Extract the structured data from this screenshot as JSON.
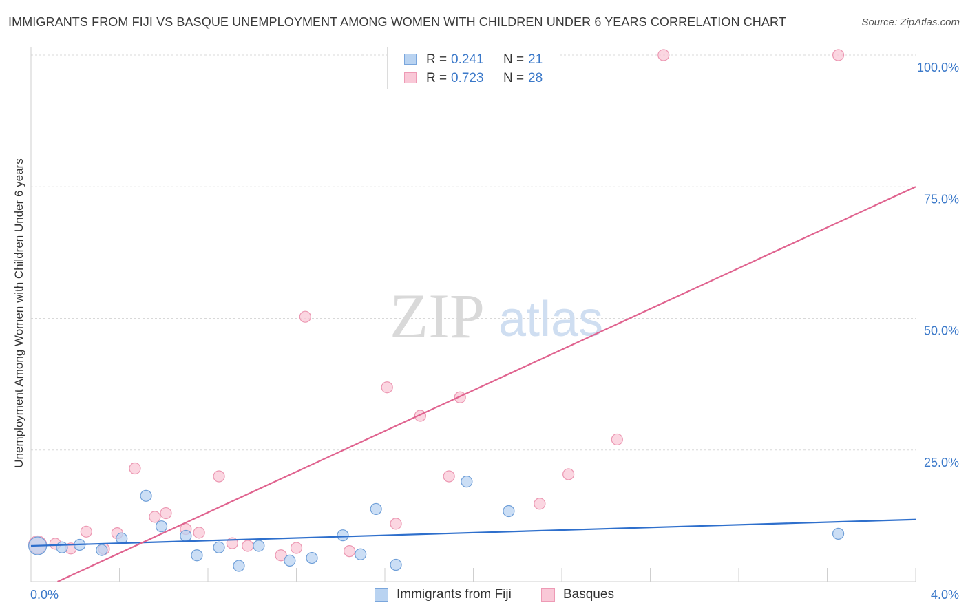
{
  "title": "IMMIGRANTS FROM FIJI VS BASQUE UNEMPLOYMENT AMONG WOMEN WITH CHILDREN UNDER 6 YEARS CORRELATION CHART",
  "source": "Source: ZipAtlas.com",
  "watermark": {
    "zip": "ZIP",
    "atlas": "atlas"
  },
  "stats": [
    {
      "r_label": "R =",
      "r_value": "0.241",
      "n_label": "N =",
      "n_value": "21",
      "fill": "#b9d3f1",
      "stroke": "#7aa6dc"
    },
    {
      "r_label": "R =",
      "r_value": "0.723",
      "n_label": "N =",
      "n_value": "28",
      "fill": "#f9c8d7",
      "stroke": "#ee9ab5"
    }
  ],
  "legend": [
    {
      "label": "Immigrants from Fiji",
      "fill": "#b9d3f1",
      "stroke": "#7aa6dc"
    },
    {
      "label": "Basques",
      "fill": "#f9c8d7",
      "stroke": "#ee9ab5"
    }
  ],
  "colors": {
    "fiji_point_fill": "#b9d3f1",
    "fiji_point_stroke": "#6f9fd8",
    "fiji_line": "#2e6fcc",
    "basque_point_fill": "#f9c8d7",
    "basque_point_stroke": "#ec97b2",
    "basque_line": "#e0638f",
    "tick_label": "#3a78c9",
    "grid": "#d8d8d8"
  },
  "chart_data": {
    "type": "scatter",
    "title": "IMMIGRANTS FROM FIJI VS BASQUE UNEMPLOYMENT AMONG WOMEN WITH CHILDREN UNDER 6 YEARS CORRELATION CHART",
    "xlabel": "",
    "ylabel": "Unemployment Among Women with Children Under 6 years",
    "xlim": [
      0,
      4
    ],
    "ylim": [
      0,
      100
    ],
    "x_tick_labels": [
      {
        "value": 0,
        "label": "0.0%"
      },
      {
        "value": 4,
        "label": "4.0%"
      }
    ],
    "y_tick_labels": [
      {
        "value": 25,
        "label": "25.0%"
      },
      {
        "value": 50,
        "label": "50.0%"
      },
      {
        "value": 75,
        "label": "75.0%"
      },
      {
        "value": 100,
        "label": "100.0%"
      }
    ],
    "grid": true,
    "legend_position": "bottom-center",
    "series": [
      {
        "name": "Immigrants from Fiji",
        "r": 0.241,
        "n": 21,
        "trend": [
          [
            0,
            6.8
          ],
          [
            4,
            11.8
          ]
        ],
        "points": [
          [
            0.03,
            6.8
          ],
          [
            0.14,
            6.5
          ],
          [
            0.22,
            7.0
          ],
          [
            0.32,
            6.0
          ],
          [
            0.41,
            8.2
          ],
          [
            0.52,
            16.3
          ],
          [
            0.59,
            10.5
          ],
          [
            0.7,
            8.7
          ],
          [
            0.75,
            5.0
          ],
          [
            0.85,
            6.5
          ],
          [
            0.94,
            3.0
          ],
          [
            1.03,
            6.8
          ],
          [
            1.17,
            4.0
          ],
          [
            1.27,
            4.5
          ],
          [
            1.41,
            8.8
          ],
          [
            1.49,
            5.2
          ],
          [
            1.56,
            13.8
          ],
          [
            1.65,
            3.2
          ],
          [
            1.97,
            19.0
          ],
          [
            2.16,
            13.4
          ],
          [
            3.65,
            9.1
          ]
        ]
      },
      {
        "name": "Basques",
        "r": 0.723,
        "n": 28,
        "trend": [
          [
            0.12,
            0
          ],
          [
            4,
            75
          ]
        ],
        "points": [
          [
            0.03,
            7.0
          ],
          [
            0.11,
            7.2
          ],
          [
            0.18,
            6.3
          ],
          [
            0.25,
            9.5
          ],
          [
            0.33,
            6.2
          ],
          [
            0.39,
            9.2
          ],
          [
            0.47,
            21.5
          ],
          [
            0.56,
            12.3
          ],
          [
            0.61,
            13.0
          ],
          [
            0.7,
            10.0
          ],
          [
            0.76,
            9.3
          ],
          [
            0.85,
            20.0
          ],
          [
            0.91,
            7.3
          ],
          [
            0.98,
            6.8
          ],
          [
            1.13,
            5.0
          ],
          [
            1.2,
            6.4
          ],
          [
            1.24,
            50.3
          ],
          [
            1.44,
            5.8
          ],
          [
            1.61,
            36.9
          ],
          [
            1.65,
            11.0
          ],
          [
            1.76,
            31.5
          ],
          [
            1.89,
            20.0
          ],
          [
            1.94,
            35.0
          ],
          [
            2.3,
            14.8
          ],
          [
            2.43,
            20.4
          ],
          [
            2.65,
            27.0
          ],
          [
            2.86,
            100
          ],
          [
            3.65,
            100
          ]
        ]
      }
    ]
  },
  "axis_labels": {
    "ylabel": "Unemployment Among Women with Children Under 6 years"
  }
}
